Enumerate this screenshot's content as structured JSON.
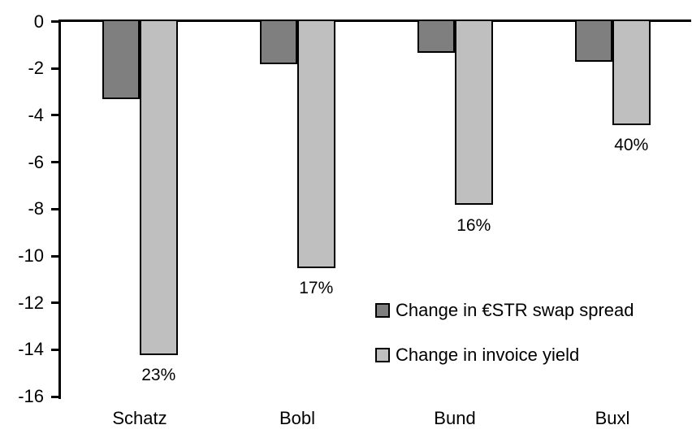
{
  "chart_data": {
    "type": "bar",
    "title": "",
    "xlabel": "",
    "ylabel": "",
    "categories": [
      "Schatz",
      "Bobl",
      "Bund",
      "Buxl"
    ],
    "series": [
      {
        "name": "Change in €STR swap spread",
        "color": "#7f7f7f",
        "values": [
          -3.3,
          -1.8,
          -1.3,
          -1.7
        ]
      },
      {
        "name": "Change in invoice yield",
        "color": "#bfbfbf",
        "values": [
          -14.2,
          -10.5,
          -7.8,
          -4.4
        ],
        "data_labels": [
          "23%",
          "17%",
          "16%",
          "40%"
        ]
      }
    ],
    "ylim": [
      -16,
      0
    ],
    "yticks": [
      0,
      -2,
      -4,
      -6,
      -8,
      -10,
      -12,
      -14,
      -16
    ],
    "grid": false,
    "legend_position": "inside-center-right",
    "colors": {
      "axis": "#000000",
      "bar_border": "#000000",
      "text": "#000000",
      "background": "#ffffff"
    }
  }
}
